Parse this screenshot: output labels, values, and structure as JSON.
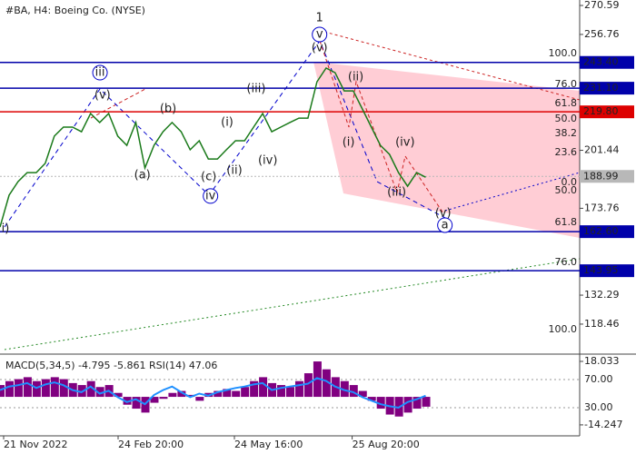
{
  "chart_data": [
    {
      "type": "line",
      "title": "#BA, H4:  Boeing Co. (NYSE)",
      "x": [
        0,
        2.5,
        5,
        7.5,
        10,
        12.5,
        15,
        17.5,
        20,
        22.5,
        25,
        27.5,
        30,
        32.5,
        35,
        37.5,
        40,
        42.5,
        45,
        47.5,
        50,
        52.5,
        55,
        57.5,
        60,
        62.5,
        65,
        67.5,
        70,
        72.5,
        75,
        77.5,
        80,
        82.5,
        85,
        87.5,
        90,
        92.5,
        95,
        97.5,
        100,
        102.5,
        105,
        107.5,
        110,
        112.5,
        115,
        117.5
      ],
      "series": [
        {
          "color": "#1a7a1a",
          "values": [
            164.8,
            180.0,
            186.5,
            190.8,
            190.8,
            195.2,
            208.2,
            212.5,
            212.5,
            210.3,
            219.0,
            214.7,
            219.0,
            208.2,
            203.8,
            214.7,
            193.0,
            203.8,
            210.3,
            214.7,
            210.3,
            201.7,
            206.0,
            197.3,
            197.3,
            201.7,
            206.0,
            206.0,
            212.5,
            219.0,
            210.3,
            212.5,
            214.7,
            216.8,
            216.8,
            234.2,
            240.7,
            238.5,
            229.8,
            229.8,
            221.2,
            212.5,
            203.8,
            199.5,
            190.8,
            184.3,
            190.8,
            188.6
          ]
        }
      ],
      "xlim": [
        0,
        160
      ],
      "xticks": [
        {
          "value": 1,
          "label": "21 Nov 2022"
        },
        {
          "value": 32.6,
          "label": "24 Feb 20:00"
        },
        {
          "value": 64.7,
          "label": "24 May 16:00"
        },
        {
          "value": 97.2,
          "label": "25 Aug 20:00"
        }
      ],
      "ylim": [
        105.0,
        273.2
      ],
      "yticks": [
        270.59,
        256.76,
        201.44,
        173.76,
        132.29,
        118.46
      ],
      "levels": [
        {
          "value": 243.4,
          "label": "243.40",
          "color": "#0000aa"
        },
        {
          "value": 231.1,
          "label": "231.10",
          "color": "#0000aa"
        },
        {
          "value": 219.8,
          "label": "219.80",
          "color": "#dd0000"
        },
        {
          "value": 188.99,
          "label": "188.99",
          "color": "#b8b8b8"
        },
        {
          "value": 162.6,
          "label": "162.60",
          "color": "#0000aa"
        },
        {
          "value": 143.95,
          "label": "143.95",
          "color": "#0000aa"
        }
      ],
      "fib_labels": [
        {
          "text": "100.0",
          "y": 247.6,
          "color": "#0000aa"
        },
        {
          "text": "76.0",
          "y": 232.9,
          "color": "#8b4513"
        },
        {
          "text": "61.8",
          "y": 223.8,
          "color": "#8b4513"
        },
        {
          "text": "50.0",
          "y": 216.4,
          "color": "#8b4513"
        },
        {
          "text": "38.2",
          "y": 209.5,
          "color": "#8b4513"
        },
        {
          "text": "23.6",
          "y": 200.4,
          "color": "#8b4513"
        },
        {
          "text": "0.0",
          "y": 186.1,
          "color": "#8b4513"
        },
        {
          "text": "50.0",
          "y": 182.2,
          "color": "#8b4513"
        },
        {
          "text": "61.8",
          "y": 167.0,
          "color": "#8b4513"
        },
        {
          "text": "76.0",
          "y": 148.0,
          "color": "#8b4513"
        },
        {
          "text": "100.0",
          "y": 115.9,
          "color": "#8b4513"
        }
      ],
      "wave_labels": [
        {
          "text": "1",
          "x": 88.2,
          "y": 264.5,
          "color": "#cc2222",
          "circled": false
        },
        {
          "text": "v",
          "x": 88.2,
          "y": 256.7,
          "color": "#0000cc",
          "circled": true
        },
        {
          "text": "(v)",
          "x": 88.2,
          "y": 250.2,
          "color": "#cc2222",
          "circled": false
        },
        {
          "text": "iii",
          "x": 27.6,
          "y": 238.5,
          "color": "#0000cc",
          "circled": true
        },
        {
          "text": "(v)",
          "x": 28.3,
          "y": 227.7,
          "color": "#cc2222",
          "circled": false
        },
        {
          "text": "(b)",
          "x": 46.4,
          "y": 221.2,
          "color": "#cc2222",
          "circled": false
        },
        {
          "text": "(iii)",
          "x": 70.7,
          "y": 230.7,
          "color": "#cc2222",
          "circled": false
        },
        {
          "text": "(i)",
          "x": 62.7,
          "y": 214.7,
          "color": "#cc2222",
          "circled": false
        },
        {
          "text": "(ii)",
          "x": 64.7,
          "y": 191.7,
          "color": "#cc2222",
          "circled": false
        },
        {
          "text": "(iv)",
          "x": 73.9,
          "y": 196.5,
          "color": "#cc2222",
          "circled": false
        },
        {
          "text": "(a)",
          "x": 39.3,
          "y": 189.5,
          "color": "#cc2222",
          "circled": false
        },
        {
          "text": "(c)",
          "x": 57.6,
          "y": 188.7,
          "color": "#cc2222",
          "circled": false
        },
        {
          "text": "iv",
          "x": 58.1,
          "y": 179.6,
          "color": "#0000cc",
          "circled": true
        },
        {
          "text": "(ii)",
          "x": 98.2,
          "y": 236.3,
          "color": "#cc2222",
          "circled": false
        },
        {
          "text": "(i)",
          "x": 96.2,
          "y": 205.1,
          "color": "#cc2222",
          "circled": false
        },
        {
          "text": "(iv)",
          "x": 111.8,
          "y": 205.1,
          "color": "#cc2222",
          "circled": false
        },
        {
          "text": "(iii)",
          "x": 109.5,
          "y": 181.3,
          "color": "#cc2222",
          "circled": false
        },
        {
          "text": "(v)",
          "x": 122.3,
          "y": 171.3,
          "color": "#cc2222",
          "circled": false
        },
        {
          "text": "a",
          "x": 122.8,
          "y": 165.7,
          "color": "#0000cc",
          "circled": true
        },
        {
          "text": "i)",
          "x": 1.5,
          "y": 164.0,
          "color": "#cc2222",
          "circled": false
        }
      ]
    },
    {
      "type": "macd",
      "title": "MACD(5,34,5) -4.795 -5.861 RSI(14) 47.06",
      "x": [
        0,
        2.5,
        5,
        7.5,
        10,
        12.5,
        15,
        17.5,
        20,
        22.5,
        25,
        27.5,
        30,
        32.5,
        35,
        37.5,
        40,
        42.5,
        45,
        47.5,
        50,
        52.5,
        55,
        57.5,
        60,
        62.5,
        65,
        67.5,
        70,
        72.5,
        75,
        77.5,
        80,
        82.5,
        85,
        87.5,
        90,
        92.5,
        95,
        97.5,
        100,
        102.5,
        105,
        107.5,
        110,
        112.5,
        115,
        117.5
      ],
      "series": [
        {
          "color": "#800080",
          "values": [
            6,
            8,
            9,
            10,
            8,
            9,
            10,
            9,
            7,
            6,
            8,
            5,
            6,
            2,
            -4,
            -6,
            -8,
            -3,
            -1,
            2,
            3,
            1,
            -2,
            2,
            3,
            4,
            3,
            5,
            8,
            10,
            7,
            6,
            5,
            8,
            12,
            18,
            14,
            10,
            8,
            6,
            3,
            -2,
            -6,
            -9,
            -10,
            -8,
            -6,
            -5
          ]
        },
        {
          "color": "#1e90ff",
          "axis": "y2",
          "values": [
            55,
            60,
            62,
            65,
            58,
            63,
            66,
            62,
            55,
            52,
            60,
            50,
            54,
            45,
            38,
            42,
            35,
            48,
            55,
            60,
            52,
            45,
            50,
            47,
            52,
            55,
            58,
            60,
            63,
            65,
            55,
            58,
            60,
            62,
            64,
            72,
            68,
            60,
            55,
            52,
            45,
            40,
            35,
            32,
            30,
            38,
            42,
            47
          ]
        }
      ],
      "xlim": [
        0,
        160
      ],
      "ylim": [
        -18.9,
        20.8
      ],
      "yticks": [
        18.033,
        -14.247
      ],
      "y2lim": [
        -7.4,
        103.5
      ],
      "y2ticks": [
        {
          "value": 70,
          "label": "70.00"
        },
        {
          "value": 30,
          "label": "30.00"
        }
      ]
    }
  ]
}
